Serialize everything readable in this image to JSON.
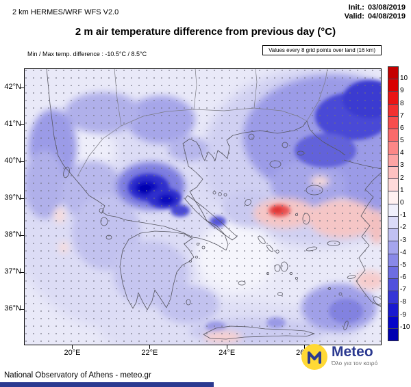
{
  "header": {
    "model_version": "2 km HERMES/WRF WFS V2.0",
    "init_label": "Init.:",
    "init_value": "03/08/2019",
    "valid_label": "Valid:",
    "valid_value": "04/08/2019"
  },
  "title": "2 m air temperature difference from previous day (°C)",
  "subheader": {
    "minmax_text": "Min / Max temp. difference : -10.5°C / 8.5°C",
    "grid_note": "Values every 8 grid points over land (16 km)"
  },
  "map": {
    "lat_ticks": [
      "42°N",
      "41°N",
      "40°N",
      "39°N",
      "38°N",
      "37°N",
      "36°N"
    ],
    "lon_ticks": [
      "20°E",
      "22°E",
      "24°E",
      "26°E"
    ]
  },
  "colorbar": {
    "tick_labels": [
      "10",
      "9",
      "8",
      "7",
      "6",
      "5",
      "4",
      "3",
      "2",
      "1",
      "0",
      "-1",
      "-2",
      "-3",
      "-4",
      "-5",
      "-6",
      "-7",
      "-8",
      "-9",
      "-10"
    ],
    "cell_colors": [
      "#c40000",
      "#d80000",
      "#ea1414",
      "#f23030",
      "#f74d4d",
      "#fa6a6a",
      "#fc8787",
      "#fda4a4",
      "#fec1c1",
      "#ffdada",
      "#fff1f1",
      "#f0f0fc",
      "#dbdbf8",
      "#c1c1f3",
      "#a5a5ee",
      "#8989e8",
      "#6d6de2",
      "#5151dc",
      "#3535d6",
      "#1919d0",
      "#0505c9",
      "#0000b0"
    ]
  },
  "footer": {
    "attribution": "National Observatory of Athens - meteo.gr"
  },
  "logo": {
    "name": "Meteo",
    "tagline": "Όλο για τον καιρό",
    "circle_color": "#FFD935",
    "text_color": "#2B3990"
  },
  "colors": {
    "footer_bar": "#2B3990"
  }
}
